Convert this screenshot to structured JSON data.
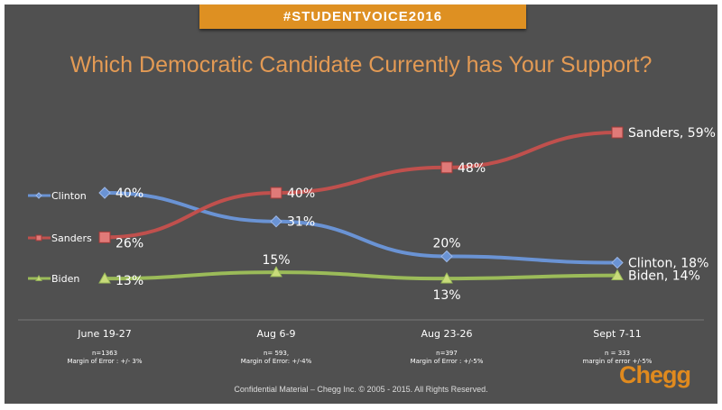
{
  "banner": "#STUDENTVOICE2016",
  "footer": "Confidential Material – Chegg Inc. © 2005 - 2015. All Rights Reserved.",
  "logo": "Chegg",
  "chart_data": {
    "type": "line",
    "title": "Which Democratic Candidate Currently has Your Support?",
    "categories": [
      "June 19-27",
      "Aug 6-9",
      "Aug 23-26",
      "Sept 7-11"
    ],
    "category_notes": [
      [
        "n=1363",
        "Margin of Error : +/- 3%"
      ],
      [
        "n= 593,",
        "Margin of Error: +/-4%"
      ],
      [
        "n=397",
        "Margin of Error : +/-5%"
      ],
      [
        "n = 333",
        "margin of error +/-5%"
      ]
    ],
    "ylim": [
      0,
      60
    ],
    "grid": false,
    "legend": "left",
    "series": [
      {
        "name": "Clinton",
        "values": [
          40,
          31,
          20,
          18
        ],
        "color": "#6a93d4",
        "marker": "diamond",
        "labels": [
          "40%",
          "31%",
          "20%",
          "Clinton, 18%"
        ]
      },
      {
        "name": "Sanders",
        "values": [
          26,
          40,
          48,
          59
        ],
        "color": "#c0504d",
        "marker": "square",
        "labels": [
          "26%",
          "40%",
          "48%",
          "Sanders, 59%"
        ]
      },
      {
        "name": "Biden",
        "values": [
          13,
          15,
          13,
          14
        ],
        "color": "#9bbb59",
        "marker": "triangle",
        "labels": [
          "13%",
          "15%",
          "13%",
          "Biden, 14%"
        ]
      }
    ]
  }
}
